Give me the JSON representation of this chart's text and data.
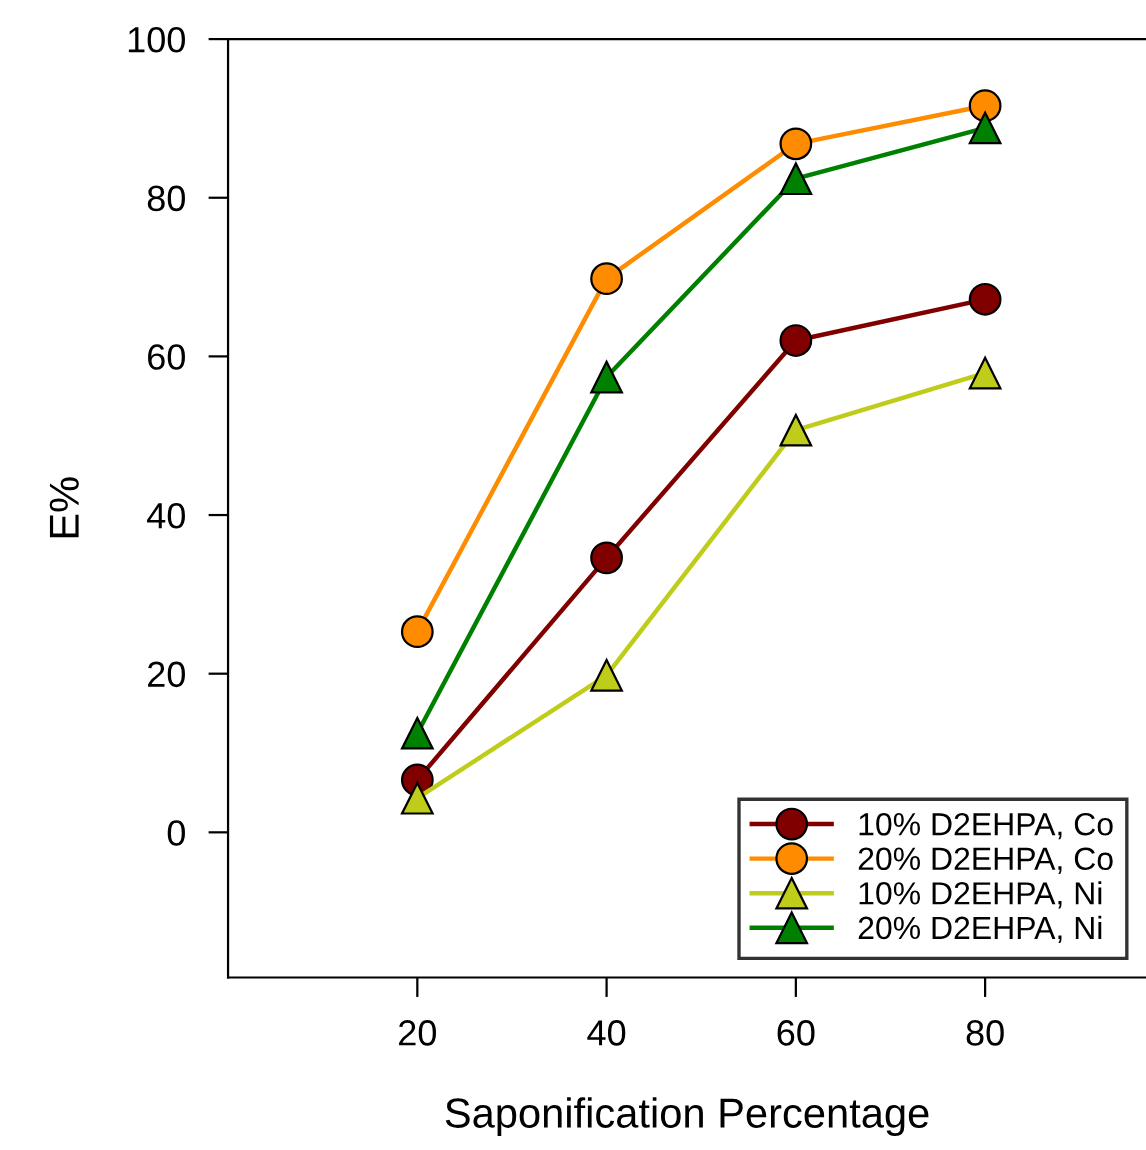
{
  "chart_data": {
    "type": "line",
    "xlabel": "Saponification Percentage",
    "ylabel": "E%",
    "x": [
      20,
      40,
      60,
      80
    ],
    "series": [
      {
        "name": "10% D2EHPA, Co",
        "color": "#800000",
        "marker": "circle",
        "values": [
          6.6,
          34.6,
          62,
          67.2
        ]
      },
      {
        "name": "20% D2EHPA, Co",
        "color": "#ff8c00",
        "marker": "circle",
        "values": [
          25.3,
          69.8,
          86.8,
          91.6
        ]
      },
      {
        "name": "10% D2EHPA, Ni",
        "color": "#bfcc1a",
        "marker": "triangle",
        "values": [
          4.3,
          19.8,
          50.7,
          57.9
        ]
      },
      {
        "name": "20% D2EHPA, Ni",
        "color": "#008000",
        "marker": "triangle",
        "values": [
          12.5,
          57.4,
          82.4,
          88.8
        ]
      }
    ],
    "xlim": [
      0,
      97
    ],
    "ylim": [
      -18.3,
      100
    ],
    "xticks": [
      20,
      40,
      60,
      80
    ],
    "yticks": [
      0,
      20,
      40,
      60,
      80,
      100
    ],
    "grid": false,
    "legend": "bottom right",
    "line_style": "solid"
  }
}
